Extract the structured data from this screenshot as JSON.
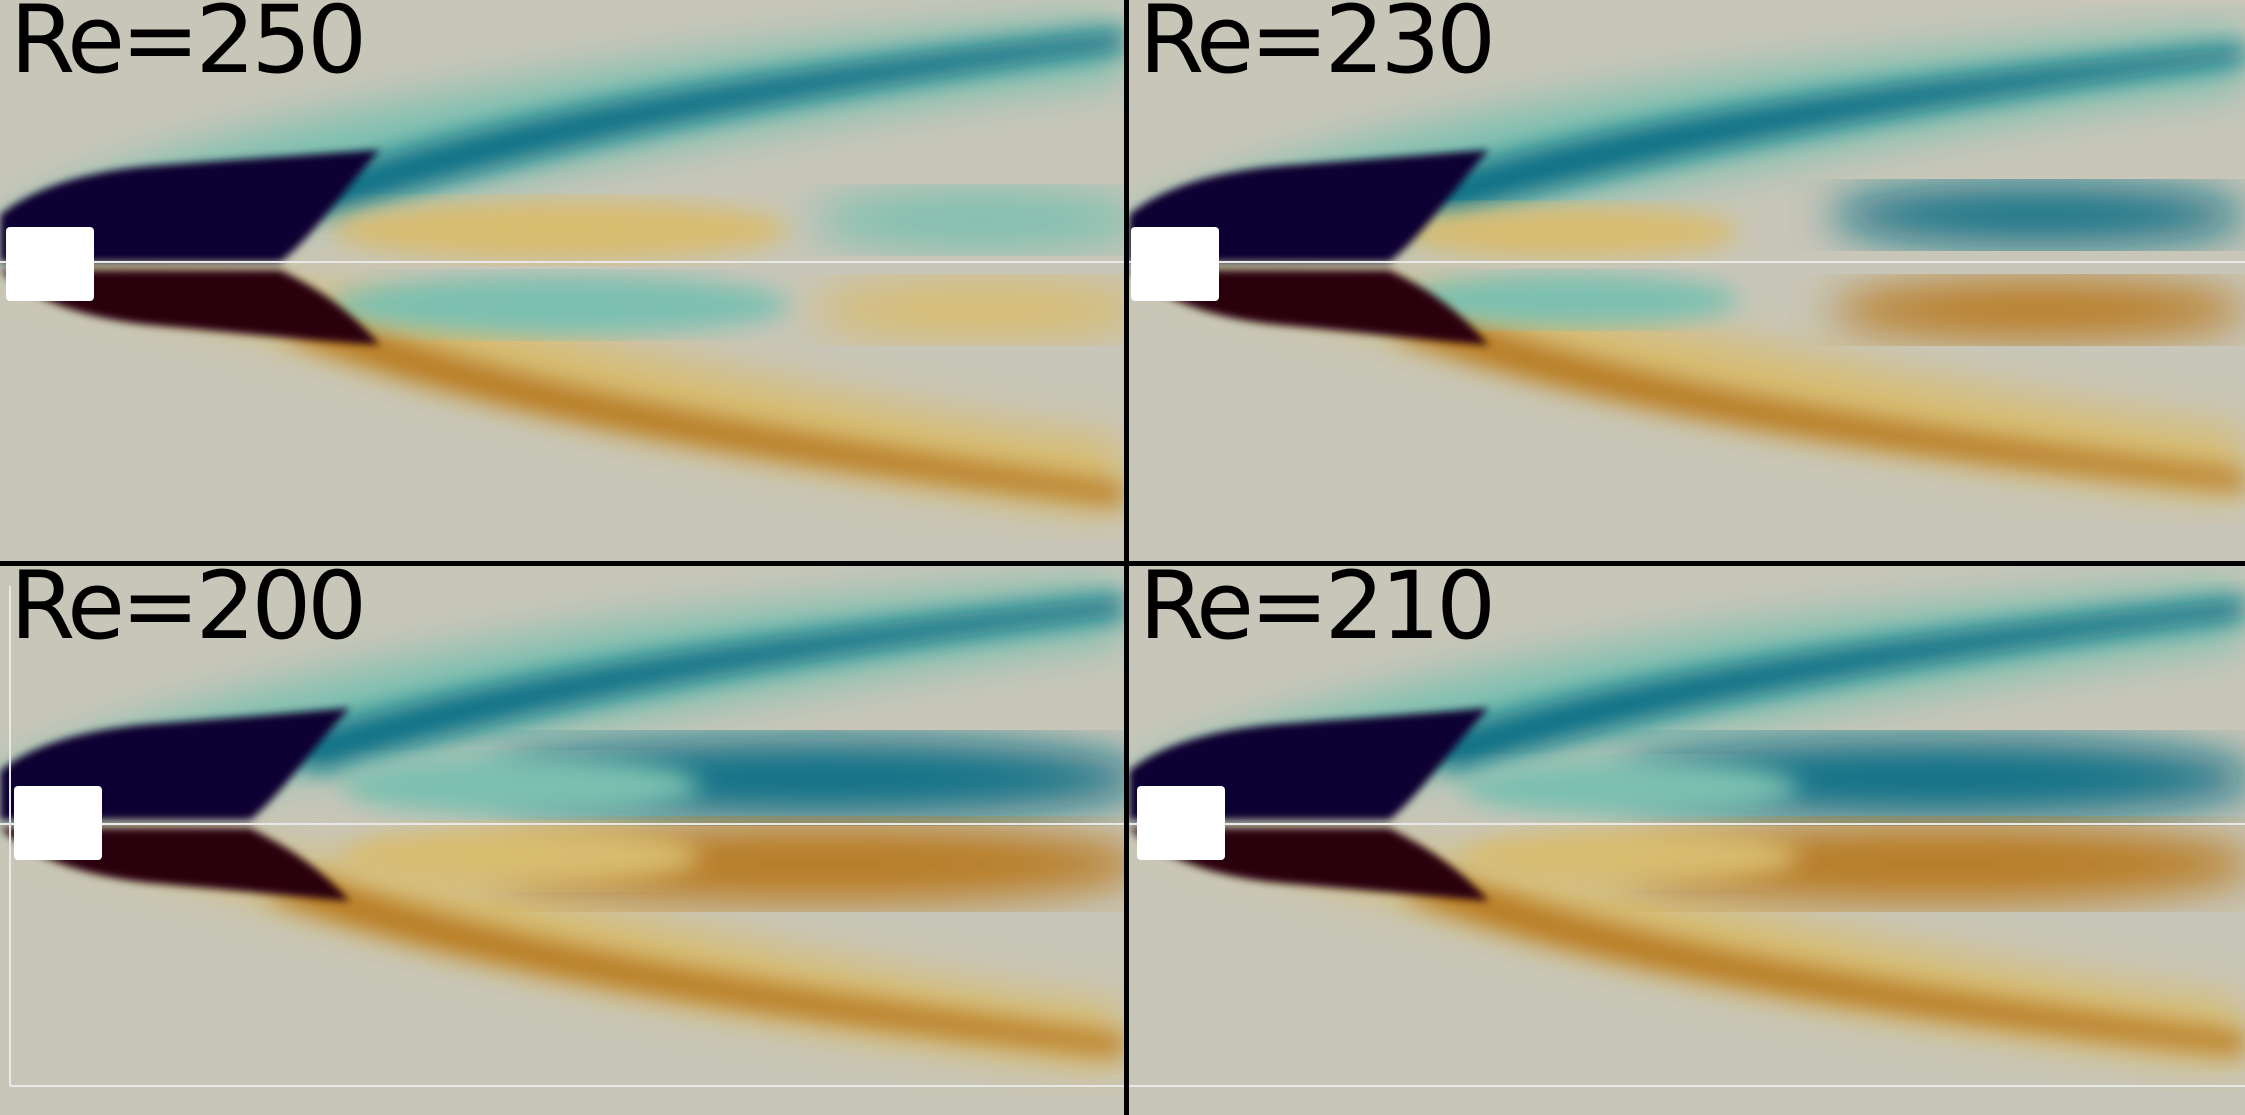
{
  "figure": {
    "panels": [
      {
        "id": "tl",
        "label": "Re=250"
      },
      {
        "id": "tr",
        "label": "Re=230"
      },
      {
        "id": "bl",
        "label": "Re=200"
      },
      {
        "id": "br",
        "label": "Re=210"
      }
    ],
    "colormap": {
      "negative_strong": "#0e0330",
      "negative_mid": "#0b6f86",
      "negative_weak": "#7bc0b0",
      "background": "#c8c6b8",
      "positive_weak": "#d8bc70",
      "positive_mid": "#b87a20",
      "positive_strong": "#2a000a",
      "obstacle": "#ffffff"
    }
  }
}
